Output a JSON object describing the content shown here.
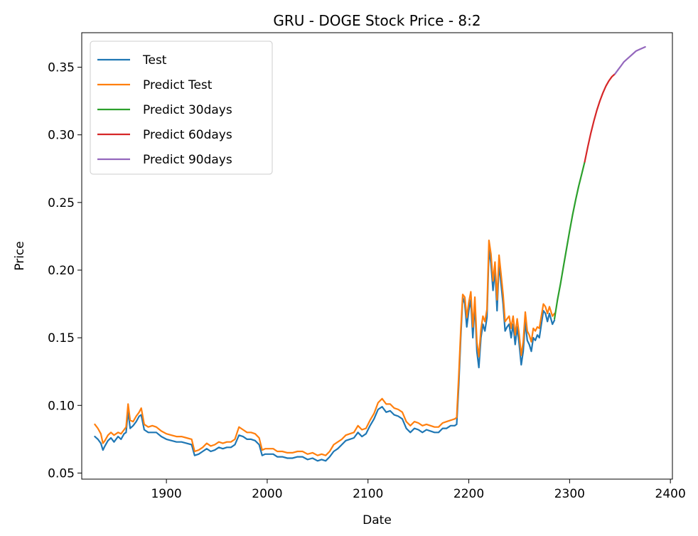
{
  "chart_data": {
    "type": "line",
    "title": "GRU - DOGE Stock Price - 8:2",
    "xlabel": "Date",
    "ylabel": "Price",
    "xlim": [
      1816,
      2402
    ],
    "ylim": [
      0.0455,
      0.3755
    ],
    "xticks": [
      1900,
      2000,
      2100,
      2200,
      2300,
      2400
    ],
    "yticks": [
      0.05,
      0.1,
      0.15,
      0.2,
      0.25,
      0.3,
      0.35
    ],
    "ytick_labels": [
      "0.05",
      "0.10",
      "0.15",
      "0.20",
      "0.25",
      "0.30",
      "0.35"
    ],
    "grid": false,
    "legend_position": "upper-left",
    "series": [
      {
        "name": "Test",
        "color": "#1f77b4",
        "x": [
          1829,
          1832,
          1835,
          1837,
          1839,
          1842,
          1845,
          1848,
          1852,
          1855,
          1858,
          1860,
          1862,
          1864,
          1867,
          1870,
          1873,
          1875,
          1878,
          1882,
          1886,
          1890,
          1895,
          1900,
          1905,
          1910,
          1915,
          1920,
          1925,
          1928,
          1932,
          1936,
          1940,
          1944,
          1948,
          1952,
          1956,
          1960,
          1964,
          1968,
          1972,
          1976,
          1980,
          1984,
          1988,
          1992,
          1995,
          1998,
          2002,
          2006,
          2010,
          2015,
          2020,
          2025,
          2030,
          2035,
          2040,
          2045,
          2050,
          2054,
          2058,
          2062,
          2066,
          2070,
          2074,
          2078,
          2082,
          2086,
          2090,
          2094,
          2098,
          2102,
          2106,
          2110,
          2114,
          2118,
          2122,
          2126,
          2130,
          2134,
          2138,
          2142,
          2146,
          2150,
          2154,
          2158,
          2162,
          2166,
          2170,
          2174,
          2178,
          2182,
          2186,
          2188,
          2190,
          2192,
          2194,
          2196,
          2198,
          2200,
          2202,
          2204,
          2206,
          2208,
          2210,
          2212,
          2214,
          2216,
          2218,
          2220,
          2222,
          2224,
          2226,
          2228,
          2230,
          2232,
          2234,
          2236,
          2238,
          2240,
          2242,
          2244,
          2246,
          2248,
          2250,
          2252,
          2254,
          2256,
          2258,
          2260,
          2262,
          2264,
          2266,
          2268,
          2270,
          2272,
          2274,
          2276,
          2278,
          2280,
          2283,
          2285
        ],
        "y": [
          0.077,
          0.075,
          0.072,
          0.067,
          0.07,
          0.074,
          0.076,
          0.073,
          0.077,
          0.075,
          0.079,
          0.08,
          0.096,
          0.083,
          0.085,
          0.088,
          0.092,
          0.093,
          0.082,
          0.08,
          0.08,
          0.08,
          0.077,
          0.075,
          0.074,
          0.073,
          0.073,
          0.072,
          0.071,
          0.063,
          0.064,
          0.066,
          0.068,
          0.066,
          0.067,
          0.069,
          0.068,
          0.069,
          0.069,
          0.071,
          0.078,
          0.077,
          0.075,
          0.075,
          0.074,
          0.071,
          0.063,
          0.064,
          0.064,
          0.064,
          0.062,
          0.062,
          0.061,
          0.061,
          0.062,
          0.062,
          0.06,
          0.061,
          0.059,
          0.06,
          0.059,
          0.062,
          0.066,
          0.068,
          0.071,
          0.074,
          0.075,
          0.076,
          0.08,
          0.077,
          0.079,
          0.085,
          0.09,
          0.097,
          0.099,
          0.095,
          0.096,
          0.093,
          0.092,
          0.09,
          0.083,
          0.08,
          0.083,
          0.082,
          0.08,
          0.082,
          0.081,
          0.08,
          0.08,
          0.083,
          0.083,
          0.085,
          0.085,
          0.086,
          0.115,
          0.15,
          0.18,
          0.175,
          0.158,
          0.17,
          0.178,
          0.15,
          0.175,
          0.14,
          0.128,
          0.15,
          0.16,
          0.155,
          0.165,
          0.215,
          0.205,
          0.185,
          0.2,
          0.17,
          0.205,
          0.19,
          0.175,
          0.155,
          0.158,
          0.16,
          0.15,
          0.16,
          0.145,
          0.158,
          0.145,
          0.13,
          0.14,
          0.162,
          0.148,
          0.145,
          0.14,
          0.15,
          0.148,
          0.152,
          0.15,
          0.16,
          0.17,
          0.168,
          0.162,
          0.168,
          0.16,
          0.163
        ]
      },
      {
        "name": "Predict Test",
        "color": "#ff7f0e",
        "x": [
          1829,
          1832,
          1835,
          1837,
          1839,
          1842,
          1845,
          1848,
          1852,
          1855,
          1858,
          1860,
          1862,
          1864,
          1867,
          1870,
          1873,
          1875,
          1878,
          1882,
          1886,
          1890,
          1895,
          1900,
          1905,
          1910,
          1915,
          1920,
          1925,
          1928,
          1932,
          1936,
          1940,
          1944,
          1948,
          1952,
          1956,
          1960,
          1964,
          1968,
          1972,
          1976,
          1980,
          1984,
          1988,
          1992,
          1995,
          1998,
          2002,
          2006,
          2010,
          2015,
          2020,
          2025,
          2030,
          2035,
          2040,
          2045,
          2050,
          2054,
          2058,
          2062,
          2066,
          2070,
          2074,
          2078,
          2082,
          2086,
          2090,
          2094,
          2098,
          2102,
          2106,
          2110,
          2114,
          2118,
          2122,
          2126,
          2130,
          2134,
          2138,
          2142,
          2146,
          2150,
          2154,
          2158,
          2162,
          2166,
          2170,
          2174,
          2178,
          2182,
          2186,
          2188,
          2190,
          2192,
          2194,
          2196,
          2198,
          2200,
          2202,
          2204,
          2206,
          2208,
          2210,
          2212,
          2214,
          2216,
          2218,
          2220,
          2222,
          2224,
          2226,
          2228,
          2230,
          2232,
          2234,
          2236,
          2238,
          2240,
          2242,
          2244,
          2246,
          2248,
          2250,
          2252,
          2254,
          2256,
          2258,
          2260,
          2262,
          2264,
          2266,
          2268,
          2270,
          2272,
          2274,
          2276,
          2278,
          2280,
          2283,
          2285
        ],
        "y": [
          0.086,
          0.083,
          0.079,
          0.072,
          0.074,
          0.078,
          0.08,
          0.078,
          0.08,
          0.079,
          0.082,
          0.084,
          0.101,
          0.089,
          0.088,
          0.092,
          0.095,
          0.098,
          0.086,
          0.084,
          0.085,
          0.084,
          0.081,
          0.079,
          0.078,
          0.077,
          0.077,
          0.076,
          0.075,
          0.066,
          0.067,
          0.069,
          0.072,
          0.07,
          0.071,
          0.073,
          0.072,
          0.073,
          0.073,
          0.075,
          0.084,
          0.082,
          0.08,
          0.08,
          0.079,
          0.076,
          0.067,
          0.068,
          0.068,
          0.068,
          0.066,
          0.066,
          0.065,
          0.065,
          0.066,
          0.066,
          0.064,
          0.065,
          0.063,
          0.064,
          0.063,
          0.066,
          0.071,
          0.073,
          0.075,
          0.078,
          0.079,
          0.08,
          0.085,
          0.082,
          0.083,
          0.089,
          0.094,
          0.102,
          0.105,
          0.101,
          0.101,
          0.098,
          0.097,
          0.095,
          0.088,
          0.085,
          0.088,
          0.087,
          0.085,
          0.086,
          0.085,
          0.084,
          0.084,
          0.087,
          0.088,
          0.089,
          0.09,
          0.091,
          0.122,
          0.155,
          0.182,
          0.18,
          0.165,
          0.176,
          0.184,
          0.158,
          0.18,
          0.147,
          0.136,
          0.156,
          0.166,
          0.162,
          0.171,
          0.222,
          0.212,
          0.192,
          0.206,
          0.178,
          0.211,
          0.197,
          0.182,
          0.162,
          0.164,
          0.166,
          0.157,
          0.166,
          0.152,
          0.164,
          0.152,
          0.137,
          0.147,
          0.169,
          0.155,
          0.152,
          0.147,
          0.157,
          0.155,
          0.158,
          0.157,
          0.166,
          0.175,
          0.173,
          0.168,
          0.173,
          0.166,
          0.168
        ]
      },
      {
        "name": "Predict 30days",
        "color": "#2ca02c",
        "x": [
          2285,
          2288,
          2291,
          2294,
          2297,
          2300,
          2303,
          2306,
          2309,
          2312,
          2315
        ],
        "y": [
          0.164,
          0.178,
          0.19,
          0.203,
          0.216,
          0.229,
          0.241,
          0.252,
          0.262,
          0.271,
          0.28
        ]
      },
      {
        "name": "Predict 60days",
        "color": "#d62728",
        "x": [
          2315,
          2318,
          2321,
          2324,
          2327,
          2330,
          2333,
          2336,
          2339,
          2342,
          2345
        ],
        "y": [
          0.28,
          0.291,
          0.301,
          0.31,
          0.318,
          0.325,
          0.331,
          0.336,
          0.34,
          0.343,
          0.345
        ]
      },
      {
        "name": "Predict 90days",
        "color": "#9467bd",
        "x": [
          2345,
          2348,
          2351,
          2354,
          2357,
          2360,
          2363,
          2366,
          2369,
          2372,
          2375
        ],
        "y": [
          0.345,
          0.348,
          0.351,
          0.354,
          0.356,
          0.358,
          0.36,
          0.362,
          0.363,
          0.364,
          0.365
        ]
      }
    ]
  }
}
